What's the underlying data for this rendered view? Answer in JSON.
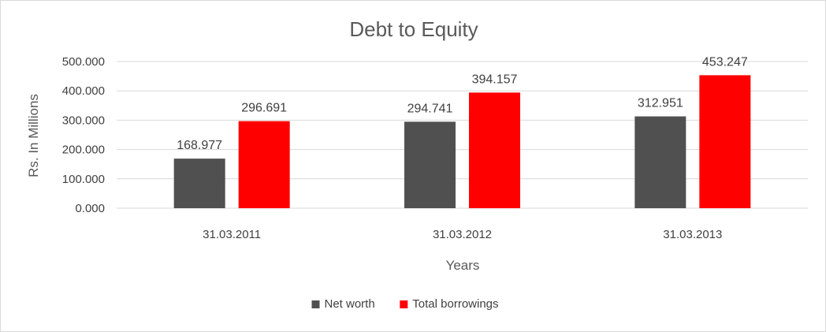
{
  "chart_data": {
    "type": "bar",
    "title": "Debt to Equity",
    "xlabel": "Years",
    "ylabel": "Rs. In Millions",
    "categories": [
      "31.03.2011",
      "31.03.2012",
      "31.03.2013"
    ],
    "series": [
      {
        "name": "Net worth",
        "values": [
          168.977,
          294.741,
          312.951
        ],
        "labels": [
          "168.977",
          "294.741",
          "312.951"
        ],
        "color": "#505050"
      },
      {
        "name": "Total borrowings",
        "values": [
          296.691,
          394.157,
          453.247
        ],
        "labels": [
          "296.691",
          "394.157",
          "453.247"
        ],
        "color": "#ff0000"
      }
    ],
    "ylim": [
      0,
      500
    ],
    "yticks": [
      "0.000",
      "100.000",
      "200.000",
      "300.000",
      "400.000",
      "500.000"
    ],
    "grid": true,
    "legend_position": "bottom"
  }
}
